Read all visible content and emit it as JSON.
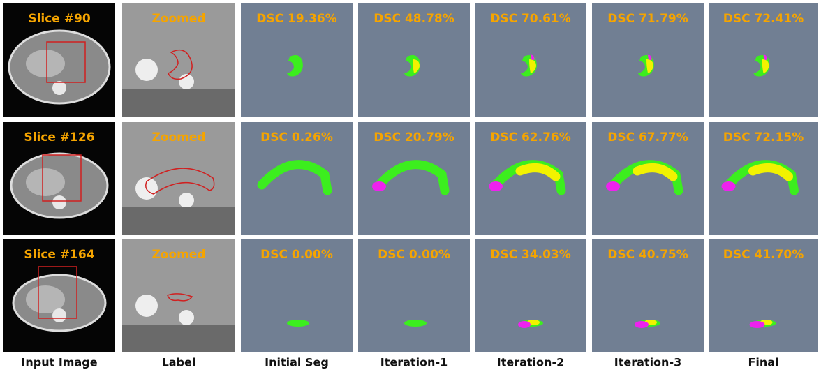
{
  "rows": [
    {
      "slice": "Slice #90",
      "zoomed": "Zoomed",
      "dsc": [
        "DSC 19.36%",
        "DSC 48.78%",
        "DSC 70.61%",
        "DSC 71.79%",
        "DSC 72.41%"
      ]
    },
    {
      "slice": "Slice #126",
      "zoomed": "Zoomed",
      "dsc": [
        "DSC 0.26%",
        "DSC 20.79%",
        "DSC 62.76%",
        "DSC 67.77%",
        "DSC 72.15%"
      ]
    },
    {
      "slice": "Slice #164",
      "zoomed": "Zoomed",
      "dsc": [
        "DSC 0.00%",
        "DSC 0.00%",
        "DSC 34.03%",
        "DSC 40.75%",
        "DSC 41.70%"
      ]
    }
  ],
  "columns": [
    "Input Image",
    "Label",
    "Initial Seg",
    "Iteration-1",
    "Iteration-2",
    "Iteration-3",
    "Final"
  ]
}
